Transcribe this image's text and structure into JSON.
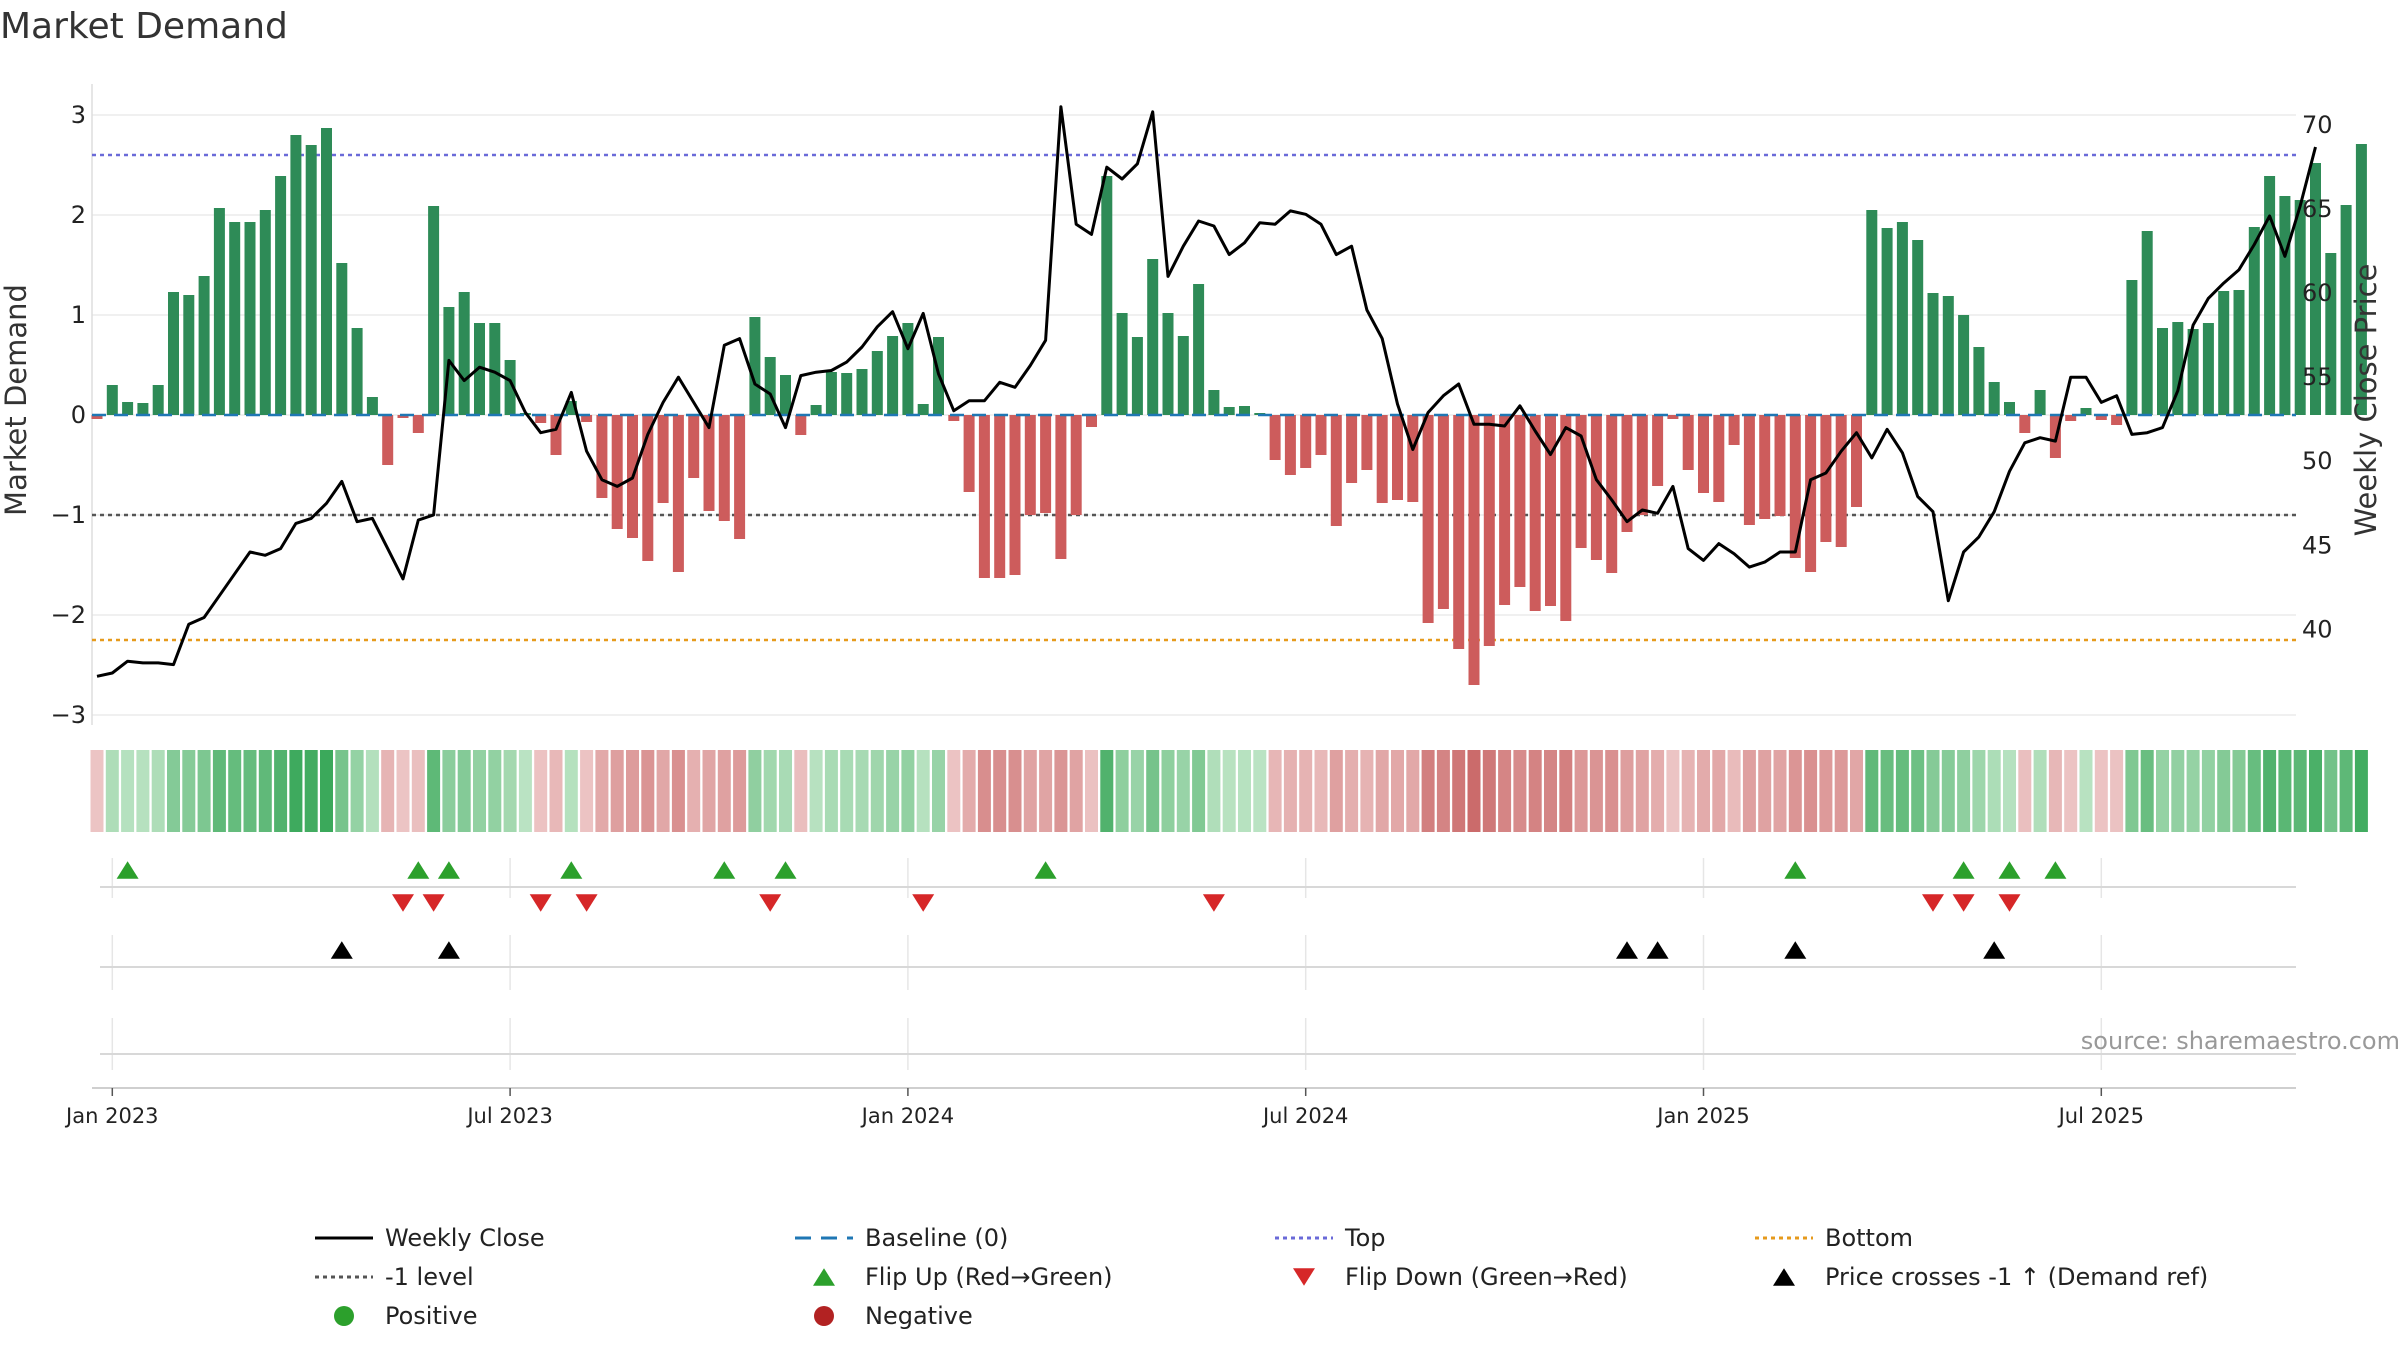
{
  "chart_data": {
    "type": "bar+line",
    "title": "Market Demand",
    "ylabel_left": "Market Demand",
    "ylabel_right": "Weekly Close Price",
    "ylim_left": [
      -3.05,
      3.15
    ],
    "ylim_right": [
      34.6,
      71.5
    ],
    "yticks_left": [
      3,
      2,
      1,
      0,
      -1,
      -2,
      -3
    ],
    "yticks_left_labels": [
      "3",
      "2",
      "1",
      "0",
      "−1",
      "−2",
      "−3"
    ],
    "yticks_right": [
      70,
      65,
      60,
      55,
      50,
      45,
      40
    ],
    "yticks_right_labels": [
      "70",
      "65",
      "60",
      "55",
      "50",
      "45",
      "40"
    ],
    "date_ticks": [
      "Jan 2023",
      "Jul 2023",
      "Jan 2024",
      "Jul 2024",
      "Jan 2025",
      "Jul 2025"
    ],
    "date_tick_weeks": [
      1,
      27,
      53,
      79,
      105,
      131
    ],
    "levels": {
      "top": 2.6,
      "bottom": -2.25,
      "minus_one": -1
    },
    "colors": {
      "positive": "#2e8b57",
      "negative": "#cd5c5c",
      "weekly_close": "#000000",
      "baseline": "#1f77b4",
      "top": "#6a6ad8",
      "bottom": "#e69a1c",
      "minus_one": "#555555",
      "flip_up": "#2ca02c",
      "flip_down": "#d62728",
      "price_cross": "#000000",
      "legend_positive": "#2ca02c",
      "legend_negative": "#b22222"
    },
    "demand": [
      -0.04,
      0.3,
      0.13,
      0.12,
      0.3,
      1.23,
      1.2,
      1.39,
      2.07,
      1.93,
      1.93,
      2.05,
      2.39,
      2.8,
      2.7,
      2.87,
      1.52,
      0.87,
      0.18,
      -0.5,
      -0.03,
      -0.18,
      2.09,
      1.08,
      1.23,
      0.92,
      0.92,
      0.55,
      0.02,
      -0.08,
      -0.4,
      0.14,
      -0.07,
      -0.83,
      -1.14,
      -1.23,
      -1.46,
      -0.88,
      -1.57,
      -0.63,
      -0.96,
      -1.06,
      -1.24,
      0.98,
      0.58,
      0.4,
      -0.2,
      0.1,
      0.43,
      0.42,
      0.46,
      0.64,
      0.79,
      0.92,
      0.11,
      0.78,
      -0.06,
      -0.77,
      -1.63,
      -1.63,
      -1.6,
      -1.0,
      -0.98,
      -1.44,
      -1.0,
      -0.12,
      2.39,
      1.02,
      0.78,
      1.56,
      1.02,
      0.79,
      1.31,
      0.25,
      0.08,
      0.09,
      0.02,
      -0.45,
      -0.6,
      -0.53,
      -0.4,
      -1.11,
      -0.68,
      -0.55,
      -0.88,
      -0.85,
      -0.87,
      -2.08,
      -1.94,
      -2.34,
      -2.7,
      -2.31,
      -1.9,
      -1.72,
      -1.96,
      -1.91,
      -2.06,
      -1.33,
      -1.45,
      -1.58,
      -1.17,
      -1.0,
      -0.71,
      -0.04,
      -0.55,
      -0.78,
      -0.87,
      -0.3,
      -1.1,
      -1.04,
      -1.01,
      -1.43,
      -1.57,
      -1.27,
      -1.32,
      -0.92,
      2.05,
      1.87,
      1.93,
      1.75,
      1.22,
      1.19,
      1.0,
      0.68,
      0.33,
      0.13,
      -0.18,
      0.25,
      -0.43,
      -0.06,
      0.07,
      -0.05,
      -0.1,
      1.35,
      1.84,
      0.87,
      0.93,
      0.86,
      0.92,
      1.24,
      1.25,
      1.88,
      2.39,
      2.19,
      2.15,
      2.52,
      1.62,
      2.1,
      2.71
    ],
    "weekly_close": [
      37.2,
      37.4,
      38.1,
      38.0,
      38.0,
      37.9,
      40.3,
      40.7,
      42.0,
      43.3,
      44.6,
      44.4,
      44.8,
      46.3,
      46.6,
      47.5,
      48.8,
      46.4,
      46.6,
      44.8,
      43.0,
      46.5,
      46.8,
      56.0,
      54.8,
      55.6,
      55.3,
      54.8,
      52.9,
      51.7,
      51.9,
      54.1,
      50.6,
      48.9,
      48.5,
      49.0,
      51.6,
      53.5,
      55.0,
      53.5,
      52.0,
      56.9,
      57.3,
      54.6,
      54.0,
      52.0,
      55.1,
      55.3,
      55.4,
      55.9,
      56.8,
      58.0,
      58.9,
      56.7,
      58.8,
      55.2,
      53.0,
      53.6,
      53.6,
      54.7,
      54.4,
      55.7,
      57.2,
      71.1,
      64.1,
      63.5,
      67.5,
      66.8,
      67.7,
      70.8,
      61.0,
      62.8,
      64.3,
      64.0,
      62.3,
      63.0,
      64.2,
      64.1,
      64.9,
      64.7,
      64.1,
      62.3,
      62.8,
      59.0,
      57.3,
      53.4,
      50.7,
      52.9,
      53.9,
      54.6,
      52.2,
      52.2,
      52.1,
      53.3,
      51.8,
      50.4,
      52.0,
      51.5,
      48.9,
      47.7,
      46.4,
      47.1,
      46.9,
      48.5,
      44.8,
      44.1,
      45.1,
      44.5,
      43.7,
      44.0,
      44.6,
      44.6,
      48.9,
      49.3,
      50.6,
      51.7,
      50.2,
      51.9,
      50.5,
      47.9,
      47.0,
      41.7,
      44.6,
      45.5,
      47.0,
      49.4,
      51.1,
      51.4,
      51.2,
      55.0,
      55.0,
      53.5,
      53.9,
      51.6,
      51.7,
      52.0,
      54.2,
      58.1,
      59.7,
      60.6,
      61.4,
      62.9,
      64.6,
      62.2,
      65.2,
      68.7
    ],
    "flip_up_weeks": [
      2,
      21,
      23,
      31,
      41,
      45,
      62,
      111,
      122,
      125,
      128
    ],
    "flip_down_weeks": [
      20,
      22,
      29,
      32,
      44,
      54,
      73,
      120,
      122,
      125
    ],
    "price_cross_weeks": [
      16,
      23,
      100,
      102,
      111,
      124
    ],
    "legend": [
      {
        "label": "Weekly Close",
        "marker": "line"
      },
      {
        "label": "Baseline (0)",
        "marker": "dash"
      },
      {
        "label": "Top",
        "marker": "dot-line"
      },
      {
        "label": "Bottom",
        "marker": "dot-line"
      },
      {
        "label": "-1 level",
        "marker": "dot-line"
      },
      {
        "label": "Flip Up (Red→Green)",
        "marker": "triangle-up"
      },
      {
        "label": "Flip Down (Green→Red)",
        "marker": "triangle-down"
      },
      {
        "label": "Price crosses -1 ↑ (Demand ref)",
        "marker": "triangle-up"
      },
      {
        "label": "Positive",
        "marker": "circle"
      },
      {
        "label": "Negative",
        "marker": "circle"
      }
    ]
  },
  "source": "source: sharemaestro.com"
}
